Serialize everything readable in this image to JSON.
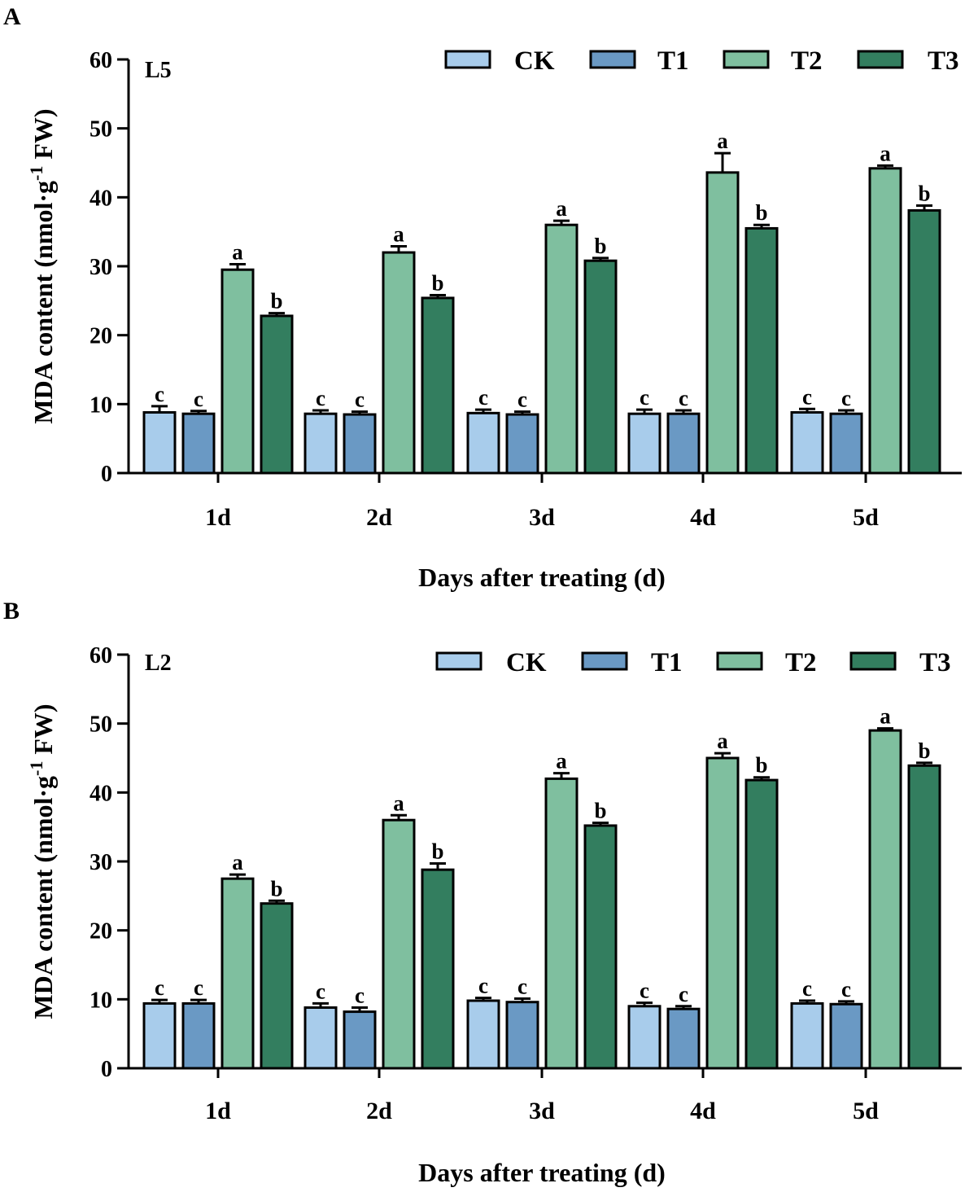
{
  "chart_data": [
    {
      "type": "bar",
      "panel": "A",
      "tag": "L5",
      "categories": [
        "1d",
        "2d",
        "3d",
        "4d",
        "5d"
      ],
      "series": [
        {
          "name": "CK",
          "values": [
            8.8,
            8.6,
            8.7,
            8.6,
            8.8
          ],
          "errors": [
            0.9,
            0.5,
            0.5,
            0.6,
            0.5
          ],
          "letters": [
            "c",
            "c",
            "c",
            "c",
            "c"
          ]
        },
        {
          "name": "T1",
          "values": [
            8.6,
            8.5,
            8.5,
            8.6,
            8.6
          ],
          "errors": [
            0.4,
            0.4,
            0.4,
            0.5,
            0.5
          ],
          "letters": [
            "c",
            "c",
            "c",
            "c",
            "c"
          ]
        },
        {
          "name": "T2",
          "values": [
            29.5,
            32.0,
            36.0,
            43.6,
            44.2
          ],
          "errors": [
            0.8,
            0.9,
            0.6,
            2.8,
            0.4
          ],
          "letters": [
            "a",
            "a",
            "a",
            "a",
            "a"
          ]
        },
        {
          "name": "T3",
          "values": [
            22.8,
            25.4,
            30.8,
            35.5,
            38.1
          ],
          "errors": [
            0.4,
            0.4,
            0.4,
            0.5,
            0.7
          ],
          "letters": [
            "b",
            "b",
            "b",
            "b",
            "b"
          ]
        }
      ],
      "xlabel": "Days after treating (d)",
      "ylabel_main": "MDA content (nmol·g",
      "ylabel_sup": "-1",
      "ylabel_tail": " FW)",
      "ylim": [
        0,
        60
      ],
      "yticks": [
        0,
        10,
        20,
        30,
        40,
        50,
        60
      ],
      "legend_position": "top-right"
    },
    {
      "type": "bar",
      "panel": "B",
      "tag": "L2",
      "categories": [
        "1d",
        "2d",
        "3d",
        "4d",
        "5d"
      ],
      "series": [
        {
          "name": "CK",
          "values": [
            9.4,
            8.8,
            9.8,
            9.0,
            9.4
          ],
          "errors": [
            0.5,
            0.6,
            0.4,
            0.5,
            0.4
          ],
          "letters": [
            "c",
            "c",
            "c",
            "c",
            "c"
          ]
        },
        {
          "name": "T1",
          "values": [
            9.4,
            8.2,
            9.6,
            8.6,
            9.3
          ],
          "errors": [
            0.5,
            0.6,
            0.5,
            0.4,
            0.4
          ],
          "letters": [
            "c",
            "c",
            "c",
            "c",
            "c"
          ]
        },
        {
          "name": "T2",
          "values": [
            27.5,
            36.0,
            42.0,
            45.0,
            49.0
          ],
          "errors": [
            0.6,
            0.7,
            0.8,
            0.7,
            0.3
          ],
          "letters": [
            "a",
            "a",
            "a",
            "a",
            "a"
          ]
        },
        {
          "name": "T3",
          "values": [
            23.9,
            28.8,
            35.2,
            41.8,
            43.9
          ],
          "errors": [
            0.4,
            0.9,
            0.4,
            0.4,
            0.4
          ],
          "letters": [
            "b",
            "b",
            "b",
            "b",
            "b"
          ]
        }
      ],
      "xlabel": "Days after treating (d)",
      "ylabel_main": "MDA content (nmol·g",
      "ylabel_sup": "-1",
      "ylabel_tail": " FW)",
      "ylim": [
        0,
        60
      ],
      "yticks": [
        0,
        10,
        20,
        30,
        40,
        50,
        60
      ],
      "legend_position": "top-right"
    }
  ],
  "colors": {
    "CK": "#a8cceb",
    "T1": "#6a99c4",
    "T2": "#7fbf9f",
    "T3": "#337e5f",
    "stroke": "#000000"
  }
}
